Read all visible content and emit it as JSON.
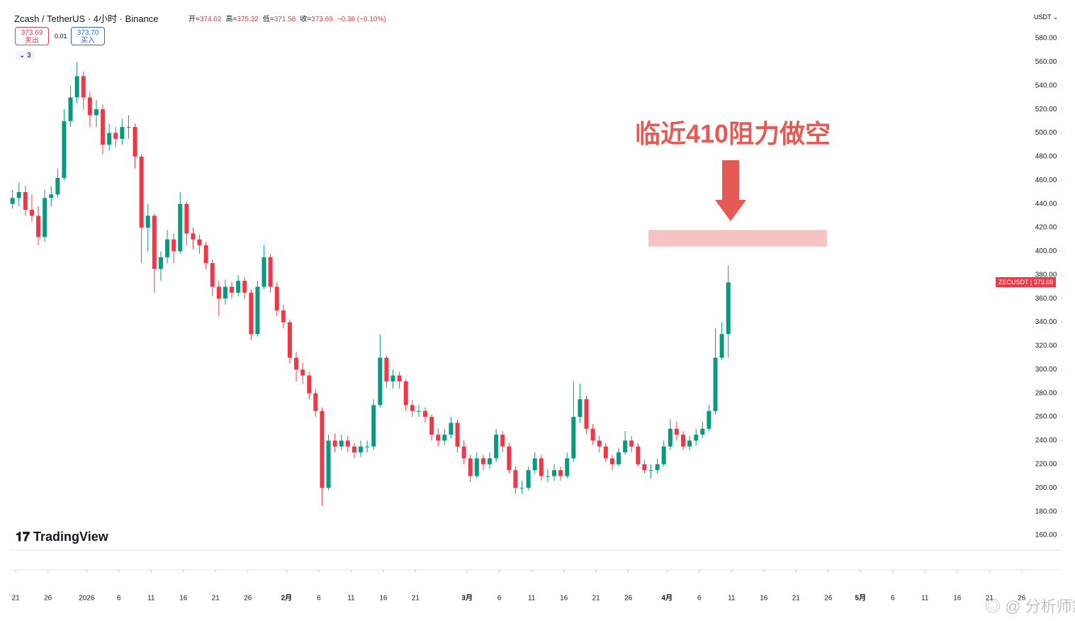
{
  "header": {
    "symbol": "Zcash / TetherUS · 4小时 · Binance",
    "ohlc": [
      {
        "label": "开=",
        "value": "374.02"
      },
      {
        "label": "高=",
        "value": "375.32"
      },
      {
        "label": "低=",
        "value": "371.58"
      },
      {
        "label": "收=",
        "value": "373.69"
      },
      {
        "label": "",
        "value": "−0.38 (−0.10%)"
      }
    ]
  },
  "trade": {
    "sell_price": "373.69",
    "sell": "卖出",
    "spread": "0.01",
    "buy_price": "373.70",
    "buy": "买入"
  },
  "indicators": "3",
  "currency": "USDT",
  "price_tag": {
    "symbol": "ZECUSDT",
    "price": "373.69"
  },
  "logo": "TradingView",
  "watermark": "分析师舒琴",
  "chart_data": {
    "type": "candlestick",
    "annotation": "临近410阻力做空",
    "resistance_zone": [
      404,
      418
    ],
    "up_color": "#089981",
    "down_color": "#f23645",
    "zone_color": "#f6c3c3",
    "arrow_color": "#e55a54",
    "ylim": [
      140,
      600
    ],
    "xlim": [
      "2025-12-19",
      "2026-05-28"
    ],
    "yticks": [
      {
        "value": 160,
        "label": "160.00"
      },
      {
        "value": 180,
        "label": "180.00"
      },
      {
        "value": 200,
        "label": "200.00"
      },
      {
        "value": 220,
        "label": "220.00"
      },
      {
        "value": 240,
        "label": "240.00"
      },
      {
        "value": 260,
        "label": "260.00"
      },
      {
        "value": 280,
        "label": "280.00"
      },
      {
        "value": 300,
        "label": "300.00"
      },
      {
        "value": 320,
        "label": "320.00"
      },
      {
        "value": 340,
        "label": "340.00"
      },
      {
        "value": 360,
        "label": "360.00"
      },
      {
        "value": 380,
        "label": "380.00"
      },
      {
        "value": 400,
        "label": "400.00"
      },
      {
        "value": 420,
        "label": "420.00"
      },
      {
        "value": 440,
        "label": "440.00"
      },
      {
        "value": 460,
        "label": "460.00"
      },
      {
        "value": 480,
        "label": "480.00"
      },
      {
        "value": 500,
        "label": "500.00"
      },
      {
        "value": 520,
        "label": "520.00"
      },
      {
        "value": 540,
        "label": "540.00"
      },
      {
        "value": 560,
        "label": "560.00"
      },
      {
        "value": 580,
        "label": "580.00"
      }
    ],
    "xticks": [
      {
        "value": "2025-12-21",
        "label": "21"
      },
      {
        "value": "2025-12-26",
        "label": "26"
      },
      {
        "value": "2026-01-01",
        "label": "2026"
      },
      {
        "value": "2026-01-06",
        "label": "6"
      },
      {
        "value": "2026-01-11",
        "label": "11"
      },
      {
        "value": "2026-01-16",
        "label": "16"
      },
      {
        "value": "2026-01-21",
        "label": "21"
      },
      {
        "value": "2026-01-26",
        "label": "26"
      },
      {
        "value": "2026-02-01",
        "label": "2月"
      },
      {
        "value": "2026-02-06",
        "label": "6"
      },
      {
        "value": "2026-02-11",
        "label": "11"
      },
      {
        "value": "2026-02-16",
        "label": "16"
      },
      {
        "value": "2026-02-21",
        "label": "21"
      },
      {
        "value": "2026-03-01",
        "label": "3月"
      },
      {
        "value": "2026-03-06",
        "label": "6"
      },
      {
        "value": "2026-03-11",
        "label": "11"
      },
      {
        "value": "2026-03-16",
        "label": "16"
      },
      {
        "value": "2026-03-21",
        "label": "21"
      },
      {
        "value": "2026-03-26",
        "label": "26"
      },
      {
        "value": "2026-04-01",
        "label": "4月"
      },
      {
        "value": "2026-04-06",
        "label": "6"
      },
      {
        "value": "2026-04-11",
        "label": "11"
      },
      {
        "value": "2026-04-16",
        "label": "16"
      },
      {
        "value": "2026-04-21",
        "label": "21"
      },
      {
        "value": "2026-04-26",
        "label": "26"
      },
      {
        "value": "2026-05-01",
        "label": "5月"
      },
      {
        "value": "2026-05-06",
        "label": "6"
      },
      {
        "value": "2026-05-11",
        "label": "11"
      },
      {
        "value": "2026-05-16",
        "label": "16"
      },
      {
        "value": "2026-05-21",
        "label": "21"
      },
      {
        "value": "2026-05-26",
        "label": "26"
      }
    ],
    "x": [
      "2025-12-20",
      "2025-12-21",
      "2025-12-22",
      "2025-12-23",
      "2025-12-24",
      "2025-12-25",
      "2025-12-26",
      "2025-12-27",
      "2025-12-28",
      "2025-12-29",
      "2025-12-30",
      "2025-12-31",
      "2026-01-01",
      "2026-01-02",
      "2026-01-03",
      "2026-01-04",
      "2026-01-05",
      "2026-01-06",
      "2026-01-07",
      "2026-01-08",
      "2026-01-09",
      "2026-01-10",
      "2026-01-11",
      "2026-01-12",
      "2026-01-13",
      "2026-01-14",
      "2026-01-15",
      "2026-01-16",
      "2026-01-17",
      "2026-01-18",
      "2026-01-19",
      "2026-01-20",
      "2026-01-21",
      "2026-01-22",
      "2026-01-23",
      "2026-01-24",
      "2026-01-25",
      "2026-01-26",
      "2026-01-27",
      "2026-01-28",
      "2026-01-29",
      "2026-01-30",
      "2026-01-31",
      "2026-02-01",
      "2026-02-02",
      "2026-02-03",
      "2026-02-04",
      "2026-02-05",
      "2026-02-06",
      "2026-02-07",
      "2026-02-08",
      "2026-02-09",
      "2026-02-10",
      "2026-02-11",
      "2026-02-12",
      "2026-02-13",
      "2026-02-14",
      "2026-02-15",
      "2026-02-16",
      "2026-02-17",
      "2026-02-18",
      "2026-02-19",
      "2026-02-20",
      "2026-02-21",
      "2026-02-22",
      "2026-02-23",
      "2026-02-24",
      "2026-02-25",
      "2026-02-26",
      "2026-02-27",
      "2026-02-28",
      "2026-03-01",
      "2026-03-02",
      "2026-03-03",
      "2026-03-04",
      "2026-03-05",
      "2026-03-06",
      "2026-03-07",
      "2026-03-08",
      "2026-03-09",
      "2026-03-10",
      "2026-03-11",
      "2026-03-12",
      "2026-03-13",
      "2026-03-14",
      "2026-03-15",
      "2026-03-16",
      "2026-03-17",
      "2026-03-18",
      "2026-03-19",
      "2026-03-20",
      "2026-03-21",
      "2026-03-22",
      "2026-03-23",
      "2026-03-24",
      "2026-03-25",
      "2026-03-26",
      "2026-03-27",
      "2026-03-28",
      "2026-03-29",
      "2026-03-30",
      "2026-03-31",
      "2026-04-01",
      "2026-04-02",
      "2026-04-03",
      "2026-04-04",
      "2026-04-05",
      "2026-04-06",
      "2026-04-07",
      "2026-04-08",
      "2026-04-09",
      "2026-04-10"
    ],
    "ohlc": [
      [
        440,
        452,
        436,
        445
      ],
      [
        445,
        458,
        438,
        450
      ],
      [
        450,
        455,
        430,
        435
      ],
      [
        435,
        448,
        425,
        430
      ],
      [
        430,
        438,
        405,
        412
      ],
      [
        412,
        452,
        408,
        445
      ],
      [
        445,
        455,
        438,
        448
      ],
      [
        448,
        470,
        445,
        462
      ],
      [
        462,
        520,
        460,
        510
      ],
      [
        510,
        540,
        505,
        530
      ],
      [
        530,
        560,
        525,
        548
      ],
      [
        548,
        552,
        520,
        530
      ],
      [
        530,
        535,
        505,
        515
      ],
      [
        515,
        528,
        505,
        520
      ],
      [
        520,
        524,
        482,
        490
      ],
      [
        490,
        508,
        485,
        500
      ],
      [
        500,
        505,
        488,
        495
      ],
      [
        495,
        512,
        490,
        505
      ],
      [
        505,
        515,
        495,
        505
      ],
      [
        505,
        508,
        470,
        480
      ],
      [
        480,
        482,
        390,
        420
      ],
      [
        420,
        440,
        400,
        430
      ],
      [
        430,
        432,
        365,
        385
      ],
      [
        385,
        400,
        375,
        395
      ],
      [
        395,
        418,
        390,
        410
      ],
      [
        410,
        415,
        390,
        400
      ],
      [
        400,
        450,
        398,
        440
      ],
      [
        440,
        442,
        405,
        415
      ],
      [
        415,
        420,
        402,
        410
      ],
      [
        410,
        414,
        398,
        405
      ],
      [
        405,
        408,
        385,
        390
      ],
      [
        390,
        393,
        362,
        370
      ],
      [
        370,
        375,
        345,
        360
      ],
      [
        360,
        376,
        355,
        370
      ],
      [
        370,
        374,
        360,
        365
      ],
      [
        365,
        380,
        362,
        375
      ],
      [
        375,
        378,
        360,
        365
      ],
      [
        365,
        368,
        325,
        330
      ],
      [
        330,
        375,
        328,
        370
      ],
      [
        370,
        405,
        368,
        395
      ],
      [
        395,
        398,
        365,
        370
      ],
      [
        370,
        374,
        345,
        350
      ],
      [
        350,
        355,
        335,
        340
      ],
      [
        340,
        342,
        305,
        310
      ],
      [
        310,
        315,
        290,
        300
      ],
      [
        300,
        306,
        288,
        295
      ],
      [
        295,
        298,
        275,
        280
      ],
      [
        280,
        284,
        260,
        265
      ],
      [
        265,
        268,
        185,
        200
      ],
      [
        200,
        245,
        198,
        240
      ],
      [
        240,
        246,
        230,
        235
      ],
      [
        235,
        245,
        232,
        240
      ],
      [
        240,
        244,
        230,
        235
      ],
      [
        235,
        238,
        225,
        230
      ],
      [
        230,
        240,
        226,
        235
      ],
      [
        235,
        240,
        230,
        235
      ],
      [
        235,
        275,
        232,
        270
      ],
      [
        270,
        330,
        268,
        310
      ],
      [
        310,
        312,
        285,
        290
      ],
      [
        290,
        300,
        284,
        295
      ],
      [
        295,
        298,
        284,
        290
      ],
      [
        290,
        292,
        265,
        270
      ],
      [
        270,
        274,
        260,
        265
      ],
      [
        265,
        270,
        260,
        265
      ],
      [
        265,
        268,
        255,
        260
      ],
      [
        260,
        262,
        240,
        245
      ],
      [
        245,
        250,
        235,
        240
      ],
      [
        240,
        250,
        236,
        245
      ],
      [
        245,
        260,
        242,
        255
      ],
      [
        255,
        258,
        230,
        235
      ],
      [
        235,
        240,
        220,
        225
      ],
      [
        225,
        228,
        205,
        210
      ],
      [
        210,
        230,
        208,
        225
      ],
      [
        225,
        228,
        215,
        220
      ],
      [
        220,
        230,
        216,
        225
      ],
      [
        225,
        250,
        222,
        245
      ],
      [
        245,
        248,
        230,
        235
      ],
      [
        235,
        238,
        212,
        215
      ],
      [
        215,
        218,
        195,
        200
      ],
      [
        200,
        206,
        195,
        200
      ],
      [
        200,
        218,
        198,
        215
      ],
      [
        215,
        230,
        212,
        225
      ],
      [
        225,
        228,
        206,
        210
      ],
      [
        210,
        216,
        205,
        210
      ],
      [
        210,
        220,
        206,
        215
      ],
      [
        215,
        218,
        206,
        210
      ],
      [
        210,
        230,
        208,
        225
      ],
      [
        225,
        290,
        222,
        260
      ],
      [
        260,
        288,
        255,
        275
      ],
      [
        275,
        278,
        245,
        250
      ],
      [
        250,
        254,
        236,
        240
      ],
      [
        240,
        244,
        230,
        235
      ],
      [
        235,
        238,
        222,
        225
      ],
      [
        225,
        228,
        215,
        220
      ],
      [
        220,
        234,
        218,
        230
      ],
      [
        230,
        248,
        228,
        240
      ],
      [
        240,
        244,
        230,
        235
      ],
      [
        235,
        238,
        218,
        220
      ],
      [
        220,
        224,
        212,
        215
      ],
      [
        215,
        220,
        208,
        215
      ],
      [
        215,
        225,
        212,
        220
      ],
      [
        220,
        240,
        218,
        235
      ],
      [
        235,
        258,
        232,
        250
      ],
      [
        250,
        256,
        240,
        245
      ],
      [
        245,
        248,
        232,
        235
      ],
      [
        235,
        244,
        232,
        240
      ],
      [
        240,
        250,
        236,
        245
      ],
      [
        245,
        256,
        242,
        250
      ],
      [
        250,
        270,
        248,
        265
      ],
      [
        265,
        335,
        262,
        310
      ],
      [
        310,
        340,
        308,
        330
      ],
      [
        330,
        388,
        310,
        373.69
      ]
    ]
  }
}
